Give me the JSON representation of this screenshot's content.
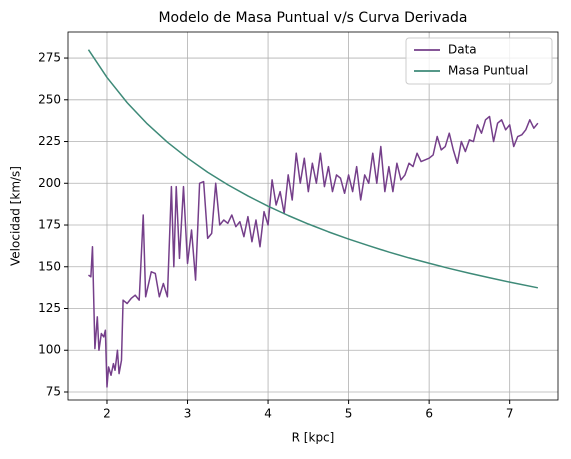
{
  "chart_data": {
    "type": "line",
    "title": "Modelo de Masa Puntual v/s Curva Derivada",
    "xlabel": "R [kpc]",
    "ylabel": "Velocidad [km/s]",
    "xlim": [
      1.516,
      7.6
    ],
    "ylim": [
      70.2,
      290.6
    ],
    "xticks": [
      2,
      3,
      4,
      5,
      6,
      7
    ],
    "yticks": [
      75,
      100,
      125,
      150,
      175,
      200,
      225,
      250,
      275
    ],
    "grid": true,
    "legend": "upper right",
    "series": [
      {
        "name": "Data",
        "color": "#753f8a",
        "x": [
          1.77,
          1.8,
          1.82,
          1.85,
          1.88,
          1.9,
          1.93,
          1.96,
          1.98,
          2.0,
          2.02,
          2.05,
          2.08,
          2.1,
          2.13,
          2.15,
          2.18,
          2.2,
          2.25,
          2.3,
          2.35,
          2.4,
          2.45,
          2.48,
          2.55,
          2.6,
          2.65,
          2.7,
          2.75,
          2.8,
          2.83,
          2.86,
          2.9,
          2.95,
          3.0,
          3.05,
          3.1,
          3.15,
          3.2,
          3.25,
          3.3,
          3.35,
          3.4,
          3.45,
          3.5,
          3.55,
          3.6,
          3.65,
          3.7,
          3.75,
          3.8,
          3.85,
          3.9,
          3.95,
          4.0,
          4.05,
          4.1,
          4.15,
          4.2,
          4.25,
          4.3,
          4.35,
          4.4,
          4.45,
          4.5,
          4.55,
          4.6,
          4.65,
          4.7,
          4.75,
          4.8,
          4.85,
          4.9,
          4.95,
          5.0,
          5.05,
          5.1,
          5.15,
          5.2,
          5.25,
          5.3,
          5.35,
          5.4,
          5.45,
          5.5,
          5.55,
          5.6,
          5.65,
          5.7,
          5.75,
          5.8,
          5.85,
          5.9,
          6.0,
          6.05,
          6.1,
          6.15,
          6.2,
          6.25,
          6.3,
          6.35,
          6.4,
          6.45,
          6.5,
          6.55,
          6.6,
          6.65,
          6.7,
          6.75,
          6.8,
          6.85,
          6.9,
          6.95,
          7.0,
          7.05,
          7.1,
          7.15,
          7.2,
          7.25,
          7.3,
          7.35
        ],
        "values": [
          145,
          144,
          162,
          101,
          120,
          100,
          110,
          108,
          112,
          78,
          90,
          85,
          92,
          88,
          100,
          86,
          94,
          130,
          128,
          131,
          133,
          130,
          181,
          132,
          147,
          146,
          132,
          140,
          132,
          198,
          150,
          198,
          155,
          198,
          152,
          172,
          142,
          200,
          201,
          167,
          170,
          200,
          175,
          178,
          176,
          181,
          174,
          177,
          168,
          180,
          165,
          178,
          162,
          183,
          175,
          202,
          187,
          195,
          182,
          205,
          190,
          218,
          200,
          215,
          195,
          212,
          200,
          218,
          198,
          210,
          195,
          205,
          203,
          194,
          205,
          195,
          210,
          190,
          205,
          200,
          218,
          200,
          222,
          195,
          210,
          195,
          212,
          202,
          205,
          212,
          210,
          218,
          213,
          215,
          217,
          228,
          220,
          222,
          230,
          220,
          212,
          225,
          219,
          226,
          225,
          235,
          230,
          238,
          240,
          225,
          236,
          238,
          232,
          235,
          222,
          228,
          229,
          232,
          238,
          233,
          236
        ]
      },
      {
        "name": "Masa Puntual",
        "color": "#3e8a78",
        "x": [
          1.77,
          2.0,
          2.25,
          2.5,
          2.75,
          3.0,
          3.25,
          3.5,
          3.75,
          4.0,
          4.25,
          4.5,
          4.75,
          5.0,
          5.25,
          5.5,
          5.75,
          6.0,
          6.25,
          6.5,
          6.75,
          7.0,
          7.35
        ],
        "values": [
          280,
          263.4,
          248.3,
          235.6,
          224.6,
          215.1,
          206.6,
          199.1,
          192.4,
          186.3,
          180.7,
          175.6,
          170.9,
          166.6,
          162.6,
          158.8,
          155.3,
          152.1,
          149.0,
          146.1,
          143.4,
          140.8,
          137.4
        ]
      }
    ]
  }
}
